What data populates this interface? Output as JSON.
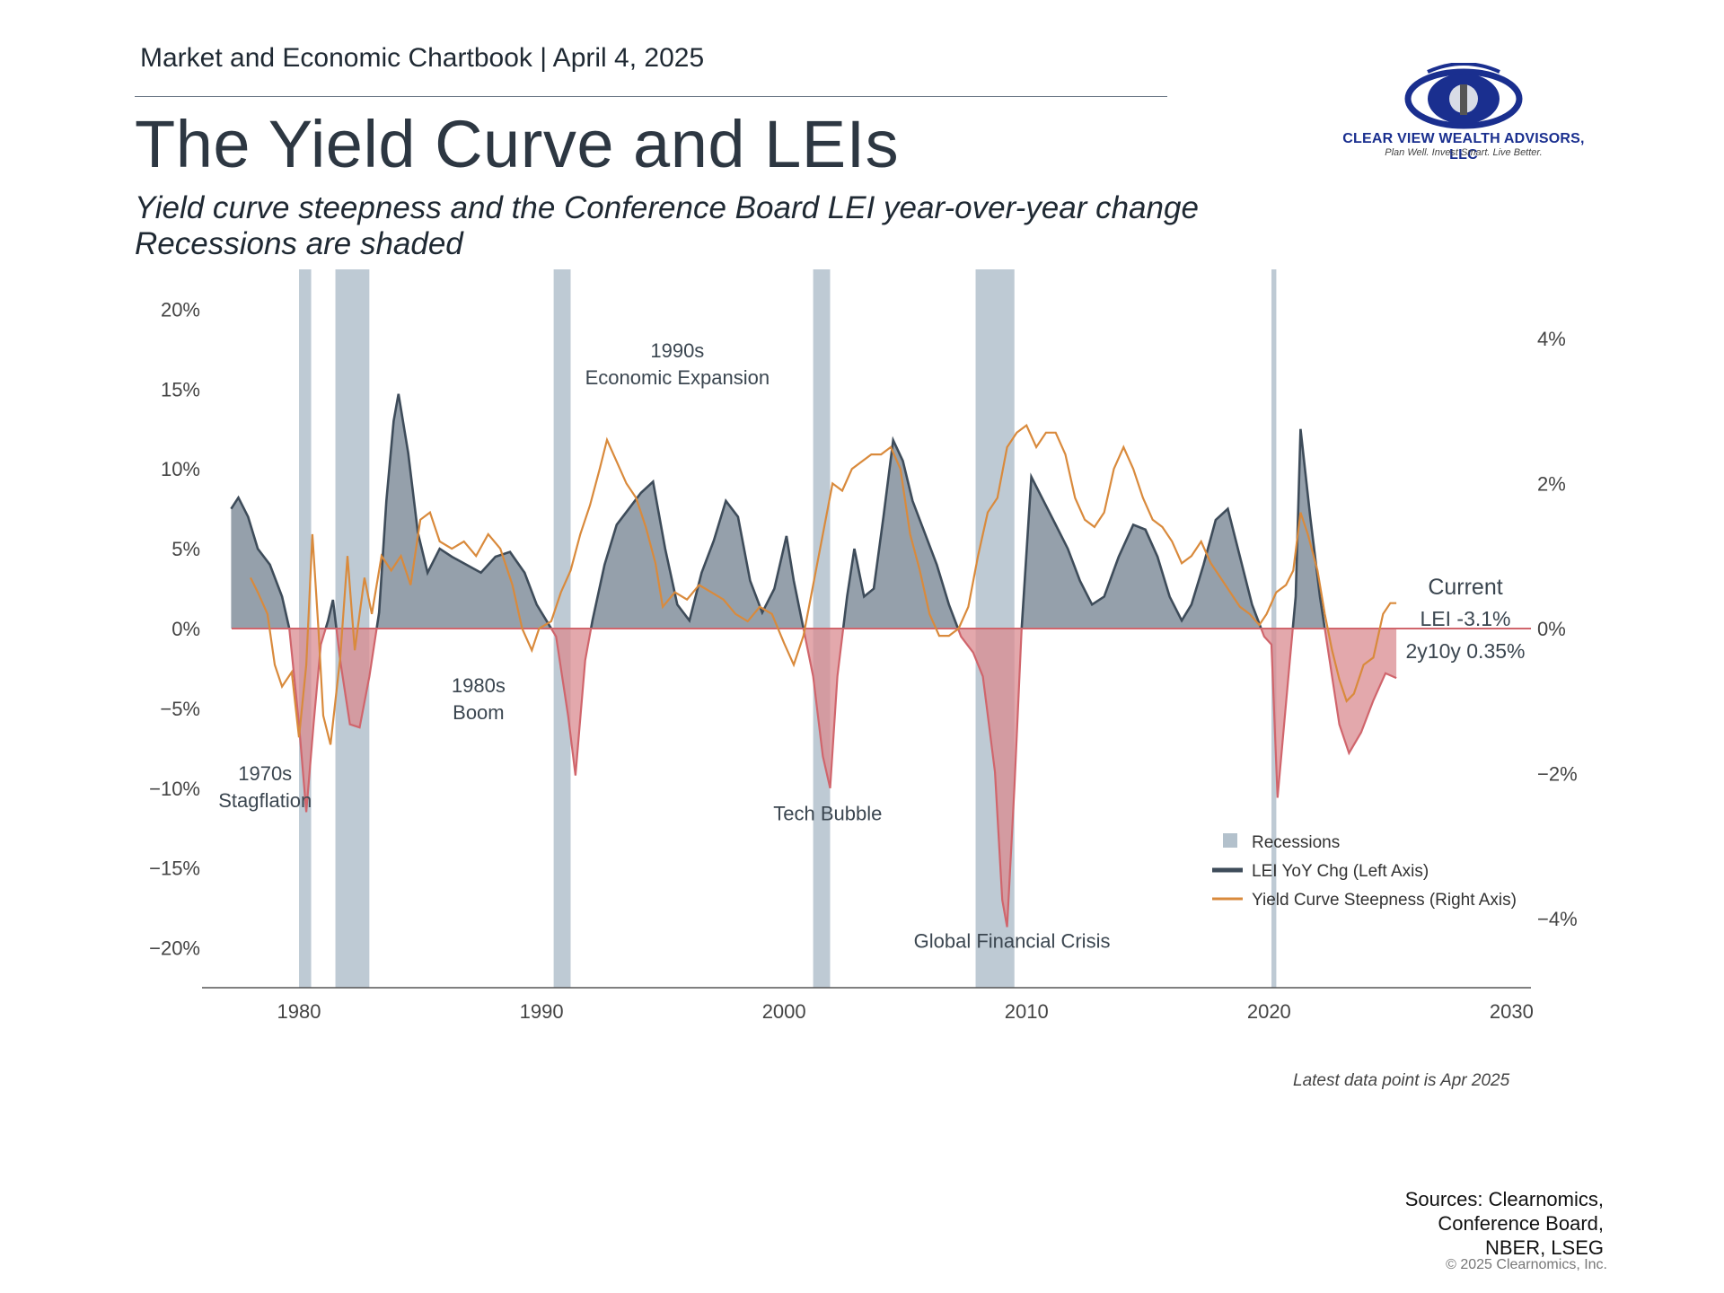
{
  "header": {
    "chartbook": "Market and Economic Chartbook | April 4, 2025"
  },
  "title": "The Yield Curve and LEIs",
  "subtitle": {
    "line1": "Yield curve steepness and the Conference  Board LEI year-over-year change",
    "line2": "Recessions are shaded"
  },
  "logo": {
    "name": "CLEAR VIEW WEALTH ADVISORS, LLC",
    "tagline": "Plan Well. Invest Smart. Live Better.",
    "icon": "eye-icon",
    "brand_color": "#1a2f8f"
  },
  "footer": {
    "note": "Latest data point is Apr 2025",
    "sources": [
      "Sources: Clearnomics,",
      "Conference Board,",
      "NBER, LSEG"
    ],
    "copyright": "© 2025 Clearnomics, Inc."
  },
  "chart_data": {
    "type": "area",
    "x_ticks": [
      1980,
      1990,
      2000,
      2010,
      2020,
      2030
    ],
    "xlim": [
      1976.0,
      2030.8
    ],
    "left_axis": {
      "ticks": [
        "20%",
        "15%",
        "10%",
        "5%",
        "0%",
        "−5%",
        "−10%",
        "−15%",
        "−20%"
      ],
      "values": [
        20,
        15,
        10,
        5,
        0,
        -5,
        -10,
        -15,
        -20
      ],
      "ylim": [
        -22.5,
        22.5
      ]
    },
    "right_axis": {
      "ticks": [
        "4%",
        "2%",
        "0%",
        "−2%",
        "−4%"
      ],
      "values": [
        4,
        2,
        0,
        -2,
        -4
      ],
      "ylim": [
        -4.95,
        4.95
      ]
    },
    "recessions": [
      [
        1980.0,
        1980.5
      ],
      [
        1981.5,
        1982.9
      ],
      [
        1990.5,
        1991.2
      ],
      [
        2001.2,
        2001.9
      ],
      [
        2007.9,
        2009.5
      ],
      [
        2020.1,
        2020.3
      ]
    ],
    "series": [
      {
        "name": "LEI YoY Chg (Left Axis)",
        "axis": "left",
        "color": "#3e4c5a",
        "fill_pos": "#8f9ba6",
        "fill_neg": "#d98b90",
        "points": [
          [
            1977.2,
            7.5
          ],
          [
            1977.5,
            8.2
          ],
          [
            1977.9,
            7
          ],
          [
            1978.3,
            5
          ],
          [
            1978.8,
            4
          ],
          [
            1979.3,
            2
          ],
          [
            1979.6,
            0
          ],
          [
            1980.0,
            -6
          ],
          [
            1980.3,
            -11.5
          ],
          [
            1980.6,
            -6
          ],
          [
            1980.9,
            -1
          ],
          [
            1981.2,
            0.5
          ],
          [
            1981.4,
            1.8
          ],
          [
            1981.7,
            -2
          ],
          [
            1982.1,
            -6
          ],
          [
            1982.5,
            -6.2
          ],
          [
            1982.9,
            -3
          ],
          [
            1983.3,
            1
          ],
          [
            1983.6,
            8
          ],
          [
            1983.9,
            13
          ],
          [
            1984.1,
            14.7
          ],
          [
            1984.5,
            11
          ],
          [
            1984.9,
            6
          ],
          [
            1985.3,
            3.5
          ],
          [
            1985.8,
            5
          ],
          [
            1986.3,
            4.5
          ],
          [
            1986.9,
            4
          ],
          [
            1987.5,
            3.5
          ],
          [
            1988.1,
            4.5
          ],
          [
            1988.7,
            4.8
          ],
          [
            1989.3,
            3.5
          ],
          [
            1989.8,
            1.5
          ],
          [
            1990.2,
            0.5
          ],
          [
            1990.6,
            -0.5
          ],
          [
            1991.1,
            -5.5
          ],
          [
            1991.4,
            -9.2
          ],
          [
            1991.8,
            -2
          ],
          [
            1992.1,
            0.5
          ],
          [
            1992.6,
            4
          ],
          [
            1993.1,
            6.5
          ],
          [
            1993.6,
            7.5
          ],
          [
            1994.1,
            8.5
          ],
          [
            1994.6,
            9.2
          ],
          [
            1995.1,
            5
          ],
          [
            1995.6,
            1.5
          ],
          [
            1996.1,
            0.5
          ],
          [
            1996.6,
            3.5
          ],
          [
            1997.1,
            5.5
          ],
          [
            1997.6,
            8
          ],
          [
            1998.1,
            7
          ],
          [
            1998.6,
            3
          ],
          [
            1999.1,
            1
          ],
          [
            1999.6,
            2.5
          ],
          [
            2000.1,
            5.8
          ],
          [
            2000.4,
            3
          ],
          [
            2000.8,
            0
          ],
          [
            2001.2,
            -3
          ],
          [
            2001.6,
            -8
          ],
          [
            2001.9,
            -10
          ],
          [
            2002.2,
            -3
          ],
          [
            2002.6,
            2
          ],
          [
            2002.9,
            5
          ],
          [
            2003.3,
            2
          ],
          [
            2003.7,
            2.5
          ],
          [
            2004.1,
            7
          ],
          [
            2004.5,
            11.8
          ],
          [
            2004.9,
            10.5
          ],
          [
            2005.3,
            8
          ],
          [
            2005.8,
            6
          ],
          [
            2006.3,
            4
          ],
          [
            2006.8,
            1.5
          ],
          [
            2007.3,
            -0.5
          ],
          [
            2007.8,
            -1.5
          ],
          [
            2008.2,
            -3
          ],
          [
            2008.7,
            -9
          ],
          [
            2009.0,
            -17
          ],
          [
            2009.2,
            -18.7
          ],
          [
            2009.5,
            -10
          ],
          [
            2009.8,
            0
          ],
          [
            2010.2,
            9.5
          ],
          [
            2010.7,
            8
          ],
          [
            2011.2,
            6.5
          ],
          [
            2011.7,
            5
          ],
          [
            2012.2,
            3
          ],
          [
            2012.7,
            1.5
          ],
          [
            2013.2,
            2
          ],
          [
            2013.8,
            4.5
          ],
          [
            2014.4,
            6.5
          ],
          [
            2014.9,
            6.2
          ],
          [
            2015.4,
            4.5
          ],
          [
            2015.9,
            2
          ],
          [
            2016.4,
            0.5
          ],
          [
            2016.8,
            1.5
          ],
          [
            2017.3,
            4
          ],
          [
            2017.8,
            6.8
          ],
          [
            2018.3,
            7.5
          ],
          [
            2018.8,
            4.5
          ],
          [
            2019.3,
            1.5
          ],
          [
            2019.8,
            -0.5
          ],
          [
            2020.1,
            -1
          ],
          [
            2020.35,
            -10.6
          ],
          [
            2020.8,
            -3
          ],
          [
            2021.1,
            2
          ],
          [
            2021.3,
            12.5
          ],
          [
            2021.7,
            7
          ],
          [
            2022.1,
            2
          ],
          [
            2022.5,
            -2
          ],
          [
            2022.9,
            -6
          ],
          [
            2023.3,
            -7.8
          ],
          [
            2023.8,
            -6.5
          ],
          [
            2024.3,
            -4.5
          ],
          [
            2024.8,
            -2.8
          ],
          [
            2025.25,
            -3.1
          ]
        ]
      },
      {
        "name": "Yield Curve Steepness (Right Axis)",
        "axis": "right",
        "color": "#d98a3c",
        "points": [
          [
            1978.0,
            0.7
          ],
          [
            1978.3,
            0.5
          ],
          [
            1978.7,
            0.2
          ],
          [
            1979.0,
            -0.5
          ],
          [
            1979.3,
            -0.8
          ],
          [
            1979.7,
            -0.6
          ],
          [
            1980.0,
            -1.5
          ],
          [
            1980.3,
            -0.5
          ],
          [
            1980.55,
            1.3
          ],
          [
            1980.8,
            0
          ],
          [
            1981.0,
            -1.2
          ],
          [
            1981.3,
            -1.6
          ],
          [
            1981.7,
            -0.4
          ],
          [
            1982.0,
            1.0
          ],
          [
            1982.3,
            -0.3
          ],
          [
            1982.7,
            0.7
          ],
          [
            1983.0,
            0.2
          ],
          [
            1983.4,
            1.0
          ],
          [
            1983.8,
            0.8
          ],
          [
            1984.2,
            1.0
          ],
          [
            1984.6,
            0.6
          ],
          [
            1985.0,
            1.5
          ],
          [
            1985.4,
            1.6
          ],
          [
            1985.8,
            1.2
          ],
          [
            1986.3,
            1.1
          ],
          [
            1986.8,
            1.2
          ],
          [
            1987.3,
            1.0
          ],
          [
            1987.8,
            1.3
          ],
          [
            1988.3,
            1.1
          ],
          [
            1988.8,
            0.6
          ],
          [
            1989.2,
            0
          ],
          [
            1989.6,
            -0.3
          ],
          [
            1989.9,
            0
          ],
          [
            1990.4,
            0.1
          ],
          [
            1990.8,
            0.5
          ],
          [
            1991.2,
            0.8
          ],
          [
            1991.6,
            1.3
          ],
          [
            1992.0,
            1.7
          ],
          [
            1992.4,
            2.2
          ],
          [
            1992.7,
            2.6
          ],
          [
            1993.1,
            2.3
          ],
          [
            1993.5,
            2.0
          ],
          [
            1993.9,
            1.8
          ],
          [
            1994.3,
            1.4
          ],
          [
            1994.7,
            0.9
          ],
          [
            1995.0,
            0.3
          ],
          [
            1995.5,
            0.5
          ],
          [
            1996.0,
            0.4
          ],
          [
            1996.5,
            0.6
          ],
          [
            1997.0,
            0.5
          ],
          [
            1997.5,
            0.4
          ],
          [
            1998.0,
            0.2
          ],
          [
            1998.5,
            0.1
          ],
          [
            1999.0,
            0.3
          ],
          [
            1999.5,
            0.2
          ],
          [
            2000.0,
            -0.2
          ],
          [
            2000.4,
            -0.5
          ],
          [
            2000.8,
            -0.1
          ],
          [
            2001.2,
            0.6
          ],
          [
            2001.6,
            1.3
          ],
          [
            2002.0,
            2.0
          ],
          [
            2002.4,
            1.9
          ],
          [
            2002.8,
            2.2
          ],
          [
            2003.2,
            2.3
          ],
          [
            2003.6,
            2.4
          ],
          [
            2004.0,
            2.4
          ],
          [
            2004.4,
            2.5
          ],
          [
            2004.8,
            2.2
          ],
          [
            2005.2,
            1.3
          ],
          [
            2005.6,
            0.8
          ],
          [
            2006.0,
            0.2
          ],
          [
            2006.4,
            -0.1
          ],
          [
            2006.8,
            -0.1
          ],
          [
            2007.2,
            0
          ],
          [
            2007.6,
            0.3
          ],
          [
            2008.0,
            1.0
          ],
          [
            2008.4,
            1.6
          ],
          [
            2008.8,
            1.8
          ],
          [
            2009.2,
            2.5
          ],
          [
            2009.6,
            2.7
          ],
          [
            2010.0,
            2.8
          ],
          [
            2010.4,
            2.5
          ],
          [
            2010.8,
            2.7
          ],
          [
            2011.2,
            2.7
          ],
          [
            2011.6,
            2.4
          ],
          [
            2012.0,
            1.8
          ],
          [
            2012.4,
            1.5
          ],
          [
            2012.8,
            1.4
          ],
          [
            2013.2,
            1.6
          ],
          [
            2013.6,
            2.2
          ],
          [
            2014.0,
            2.5
          ],
          [
            2014.4,
            2.2
          ],
          [
            2014.8,
            1.8
          ],
          [
            2015.2,
            1.5
          ],
          [
            2015.6,
            1.4
          ],
          [
            2016.0,
            1.2
          ],
          [
            2016.4,
            0.9
          ],
          [
            2016.8,
            1.0
          ],
          [
            2017.2,
            1.2
          ],
          [
            2017.6,
            0.9
          ],
          [
            2018.0,
            0.7
          ],
          [
            2018.4,
            0.5
          ],
          [
            2018.8,
            0.3
          ],
          [
            2019.2,
            0.2
          ],
          [
            2019.6,
            0.05
          ],
          [
            2019.9,
            0.2
          ],
          [
            2020.3,
            0.5
          ],
          [
            2020.7,
            0.6
          ],
          [
            2021.0,
            0.8
          ],
          [
            2021.3,
            1.6
          ],
          [
            2021.6,
            1.3
          ],
          [
            2022.0,
            0.8
          ],
          [
            2022.3,
            0.2
          ],
          [
            2022.6,
            -0.3
          ],
          [
            2022.9,
            -0.7
          ],
          [
            2023.2,
            -1
          ],
          [
            2023.5,
            -0.9
          ],
          [
            2023.9,
            -0.5
          ],
          [
            2024.3,
            -0.4
          ],
          [
            2024.7,
            0.2
          ],
          [
            2025.0,
            0.35
          ],
          [
            2025.25,
            0.35
          ]
        ]
      }
    ],
    "annotations": [
      {
        "text": [
          "1970s",
          "Stagflation"
        ],
        "x": 1978.6,
        "y": -9.5
      },
      {
        "text": [
          "1980s",
          "Boom"
        ],
        "x": 1987.4,
        "y": -4.0
      },
      {
        "text": [
          "1990s",
          "Economic Expansion"
        ],
        "x": 1995.6,
        "y": 17.0
      },
      {
        "text": [
          "Tech Bubble"
        ],
        "x": 2001.8,
        "y": -12.0
      },
      {
        "text": [
          "Global Financial Crisis"
        ],
        "x": 2009.4,
        "y": -20.0
      }
    ],
    "current": {
      "label": "Current",
      "lei": "LEI -3.1%",
      "curve": "2y10y 0.35%"
    },
    "legend": {
      "placement": "bottom-right",
      "items": [
        {
          "label": "Recessions",
          "kind": "square",
          "color": "#b3c1cc"
        },
        {
          "label": "LEI YoY Chg (Left Axis)",
          "kind": "line",
          "color": "#3e4c5a"
        },
        {
          "label": "Yield Curve Steepness (Right Axis)",
          "kind": "line",
          "color": "#d98a3c"
        }
      ]
    }
  }
}
